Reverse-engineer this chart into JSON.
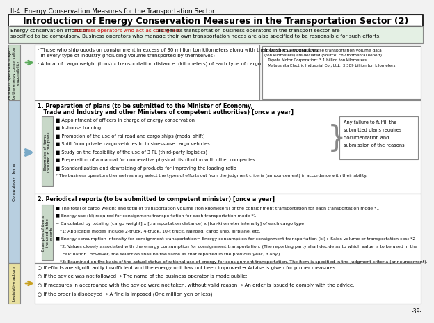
{
  "title_small": "II-4. Energy Conservation Measures for the Transportation Sector",
  "title_main": "Introduction of Energy Conservation Measures in the Transportation Sector (2)",
  "bg_color": "#f2f2f2",
  "intro_bg": "#e4f0e4",
  "intro_line1a": "Energy conservation efforts of ",
  "intro_line1b": "business operators who act as consigners",
  "intro_line1c": " as well as transportation business operators in the transport sector are",
  "intro_line2": "specified to be compulsory. Business operators who manage their own transportation needs are also specified to be responsible for such efforts.",
  "subject_label": "Business operators subject\nto the energy conservation\nresponsibility",
  "subject_label_bg": "#c8dcc8",
  "subject_bullet1a": "· Those who ship goods on consignment in excess of 30 million ton kilometers along with their business operations",
  "subject_bullet1b": "  in every type of industry (including volume transported by themselves)",
  "subject_bullet2": "· A total of cargo weight (tons) x transportation distance  (kilometers) of each type of cargo",
  "example_title": "[Example] Companies whose transportation volume data",
  "example_lines": [
    "(ton kilometers) are declared (Source: Environmental Report)",
    "   Toyota Motor Corporation: 3.1 billion ton kilometers",
    "   Matsushita Electric Industrial Co., Ltd.: 3.389 billion ton kilometers"
  ],
  "compulsory_label": "Compulsory items",
  "compulsory_label_bg": "#b8cfe0",
  "arrow_green": "#5aaa5a",
  "arrow_blue": "#7aaac8",
  "section1_title1": "1. Preparation of plans (to be submitted to the Minister of Economy,",
  "section1_title2": "   Trade and Industry and other Ministers of competent authorities) [once a year]",
  "plans_label": "Examples of items\nincluded in the plans",
  "plans_label_bg": "#c8d8c8",
  "plans_bullets": [
    "■ Appointment of officers in charge of energy conservation",
    "■ In-house training",
    "■ Promotion of the use of railroad and cargo ships (modal shift)",
    "■ Shift from private cargo vehicles to business-use cargo vehicles",
    "■ Study on the feasibility of the use of 3 PL (third-party logistics)",
    "■ Preparation of a manual for cooperative physical distribution with other companies",
    "■ Standardization and downsizing of products for improving the loading ratio",
    "* The business operators themselves may select the types of efforts out from the judgment criteria (announcement) in accordance with their ability."
  ],
  "failure_lines": [
    "Any failure to fulfill the",
    "submitted plans requires",
    "documentation and",
    "submission of the reasons"
  ],
  "section2_title": "2. Periodical reports (to be submitted to competent minister) [once a year]",
  "reports_label": "Examples of items\nincluded in the\nreports",
  "reports_label_bg": "#c8d8c8",
  "reports_bullets": [
    "■ The total of cargo weight and total of transportation volume (ton kilometers) of the consignment transportation for each transportation mode *1",
    "■ Energy use (kl) required for consignment transportation for each transportation mode *1",
    "= Calculated by totaling [cargo weight] x [transportation distance] x [ton-kilometer intensity] of each cargo type",
    "   *1: Applicable modes include 2-truck, 4-truck, 10-t truck, railroad, cargo ship, airplane, etc.",
    "■ Energy consumption intensity for consignment transportation= Energy consumption for consignment transportation (kl)÷ Sales volume or transportation cost *2",
    "   *2: Values closely associated with the energy consumption for consignment transportation. (The reporting party shall decide as to which value is to be used in the",
    "     calculation. However, the selection shall be the same as that reported in the previous year, if any.)",
    "   *3: Examined on the basis of the actual status of rational use of energy for consignment transportation. The item is specified in the judgment criteria (announcement)."
  ],
  "leg_label": "Legislative actions",
  "leg_label_bg": "#e8e0a0",
  "leg_arrow_color": "#c8a020",
  "leg_bullets": [
    "○ If efforts are significantly insufficient and the energy unit has not been improved → Advise is given for proper measures",
    "○ If the advice was not followed → The name of the business operator is made public;",
    "○ If measures in accordance with the advice were not taken, without valid reason → An order is issued to comply with the advice.",
    "○ If the order is disobeyed → A fine is imposed (One million yen or less)"
  ],
  "page_num": "-39-"
}
